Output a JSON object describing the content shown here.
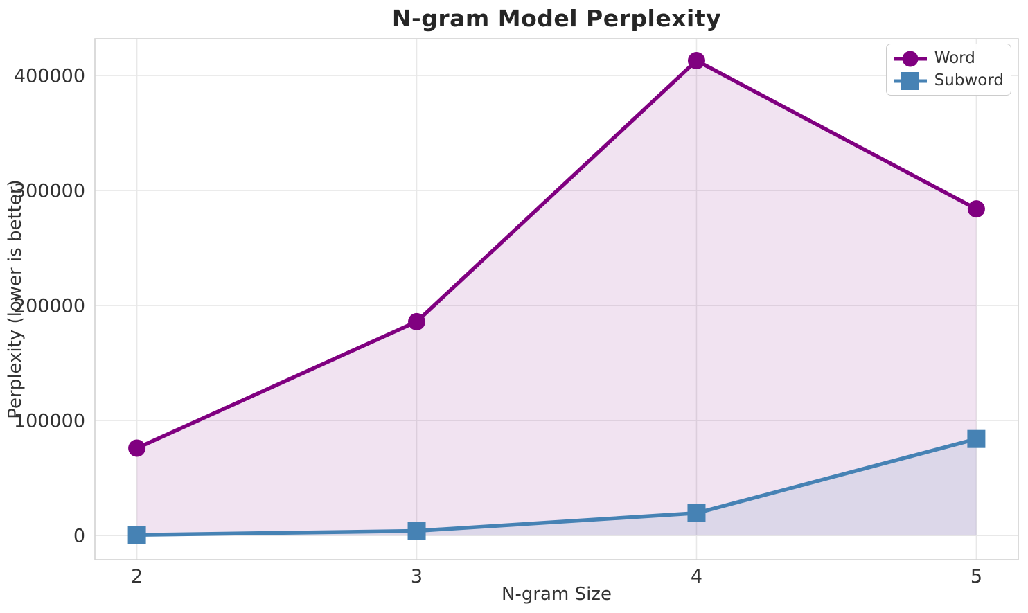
{
  "figure": {
    "title": "N-gram Model Perplexity",
    "xlabel": "N-gram Size",
    "ylabel": "Perplexity (lower is better)"
  },
  "chart_data": {
    "type": "line",
    "title": "N-gram Model Perplexity",
    "xlabel": "N-gram Size",
    "ylabel": "Perplexity (lower is better)",
    "x": [
      2,
      3,
      4,
      5
    ],
    "series": [
      {
        "name": "Word",
        "values": [
          76000,
          186000,
          413000,
          284000
        ],
        "color": "#800080",
        "marker": "circle",
        "fill_below": true,
        "fill_opacity": 0.11
      },
      {
        "name": "Subword",
        "values": [
          500,
          4000,
          19500,
          84000
        ],
        "color": "#4682B4",
        "marker": "square",
        "fill_below": true,
        "fill_opacity": 0.12
      }
    ],
    "x_ticks": [
      "2",
      "3",
      "4",
      "5"
    ],
    "x_tick_values": [
      2,
      3,
      4,
      5
    ],
    "y_ticks": [
      "0",
      "100000",
      "200000",
      "300000",
      "400000"
    ],
    "y_tick_values": [
      0,
      100000,
      200000,
      300000,
      400000
    ],
    "xlim": [
      1.85,
      5.15
    ],
    "ylim": [
      -21000,
      432000
    ],
    "grid": true,
    "legend_position": "upper right"
  },
  "style": {
    "background": "#ffffff",
    "grid_color": "#e8e8e8",
    "spine_color": "#d2d2d2",
    "tick_text_color": "#333333",
    "title_color": "#262626"
  }
}
